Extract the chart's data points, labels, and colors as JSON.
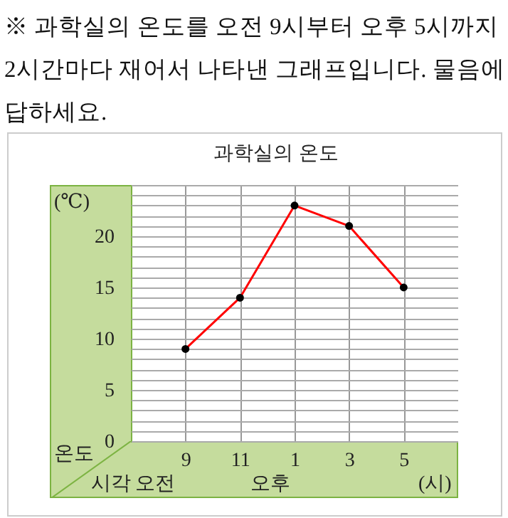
{
  "chart_data": {
    "type": "line",
    "title": "과학실의 온도",
    "xlabel": "시각",
    "ylabel": "온도",
    "annotations": [
      "※ 과학실의 온도를 오전 9시부터 오후 5시까지 2시간마다 재어서 나타낸 그래프입니다. 물음에 답하세요.",
      "(℃)",
      "오전",
      "오후",
      "(시)"
    ],
    "categories": [
      "9",
      "11",
      "1",
      "3",
      "5"
    ],
    "series": [
      {
        "color": "#ff0000",
        "values": [
          9,
          14,
          23,
          21,
          15
        ]
      }
    ],
    "ylim": [
      0,
      25
    ],
    "yticks": [
      0,
      {
        "value": 1,
        "label": null
      },
      {
        "value": 2,
        "label": null
      },
      {
        "value": 3,
        "label": null
      },
      {
        "value": 4,
        "label": null
      },
      5,
      {
        "value": 6,
        "label": null
      },
      {
        "value": 7,
        "label": null
      },
      {
        "value": 8,
        "label": null
      },
      {
        "value": 9,
        "label": null
      },
      10,
      {
        "value": 11,
        "label": null
      },
      {
        "value": 12,
        "label": null
      },
      {
        "value": 13,
        "label": null
      },
      {
        "value": 14,
        "label": null
      },
      15,
      {
        "value": 16,
        "label": null
      },
      {
        "value": 17,
        "label": null
      },
      {
        "value": 18,
        "label": null
      },
      {
        "value": 19,
        "label": null
      },
      20,
      {
        "value": 21,
        "label": null
      },
      {
        "value": 22,
        "label": null
      },
      {
        "value": 23,
        "label": null
      },
      {
        "value": 24,
        "label": null
      },
      {
        "value": 25,
        "label": null
      }
    ],
    "grid": true,
    "marker": "circle",
    "line_style": "solid"
  }
}
